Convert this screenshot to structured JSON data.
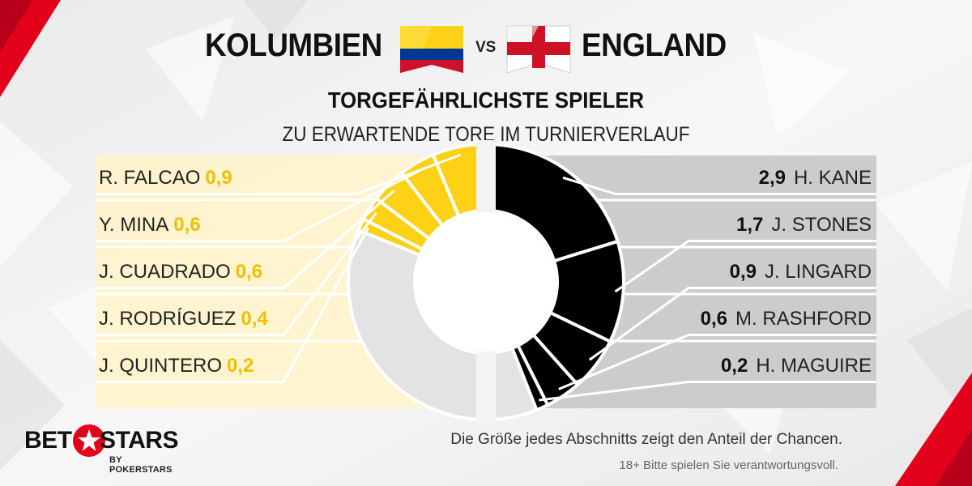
{
  "header": {
    "team_left": "KOLUMBIEN",
    "vs": "VS",
    "team_right": "ENGLAND",
    "subtitle": "TORGEFÄHRLICHSTE SPIELER",
    "caption": "ZU ERWARTENDE TORE IM TURNIERVERLAUF"
  },
  "colors": {
    "colombia": "#fcd116",
    "colombia_panel": "#fff3c8",
    "england": "#000000",
    "england_panel": "#cccccc",
    "remainder": "#e3e3e3",
    "brand_red": "#e3001b"
  },
  "chart_data": [
    {
      "type": "pie",
      "name": "KOLUMBIEN",
      "categories": [
        "R. FALCAO",
        "Y. MINA",
        "J. CUADRADO",
        "J. RODRÍGUEZ",
        "J. QUINTERO"
      ],
      "values": [
        0.9,
        0.6,
        0.6,
        0.4,
        0.2
      ],
      "labels": [
        "0,9",
        "0,6",
        "0,6",
        "0,4",
        "0,2"
      ]
    },
    {
      "type": "pie",
      "name": "ENGLAND",
      "categories": [
        "H. KANE",
        "J. STONES",
        "J. LINGARD",
        "M. RASHFORD",
        "H. MAGUIRE"
      ],
      "values": [
        2.9,
        1.7,
        0.9,
        0.6,
        0.2
      ],
      "labels": [
        "2,9",
        "1,7",
        "0,9",
        "0,6",
        "0,2"
      ]
    }
  ],
  "footer": {
    "note": "Die Größe jedes Abschnitts zeigt den Anteil der Chancen.",
    "disclaimer": "18+ Bitte spielen Sie verantwortungsvoll.",
    "logo_bet": "BET",
    "logo_stars": "STARS",
    "logo_sub": "BY POKERSTARS"
  }
}
